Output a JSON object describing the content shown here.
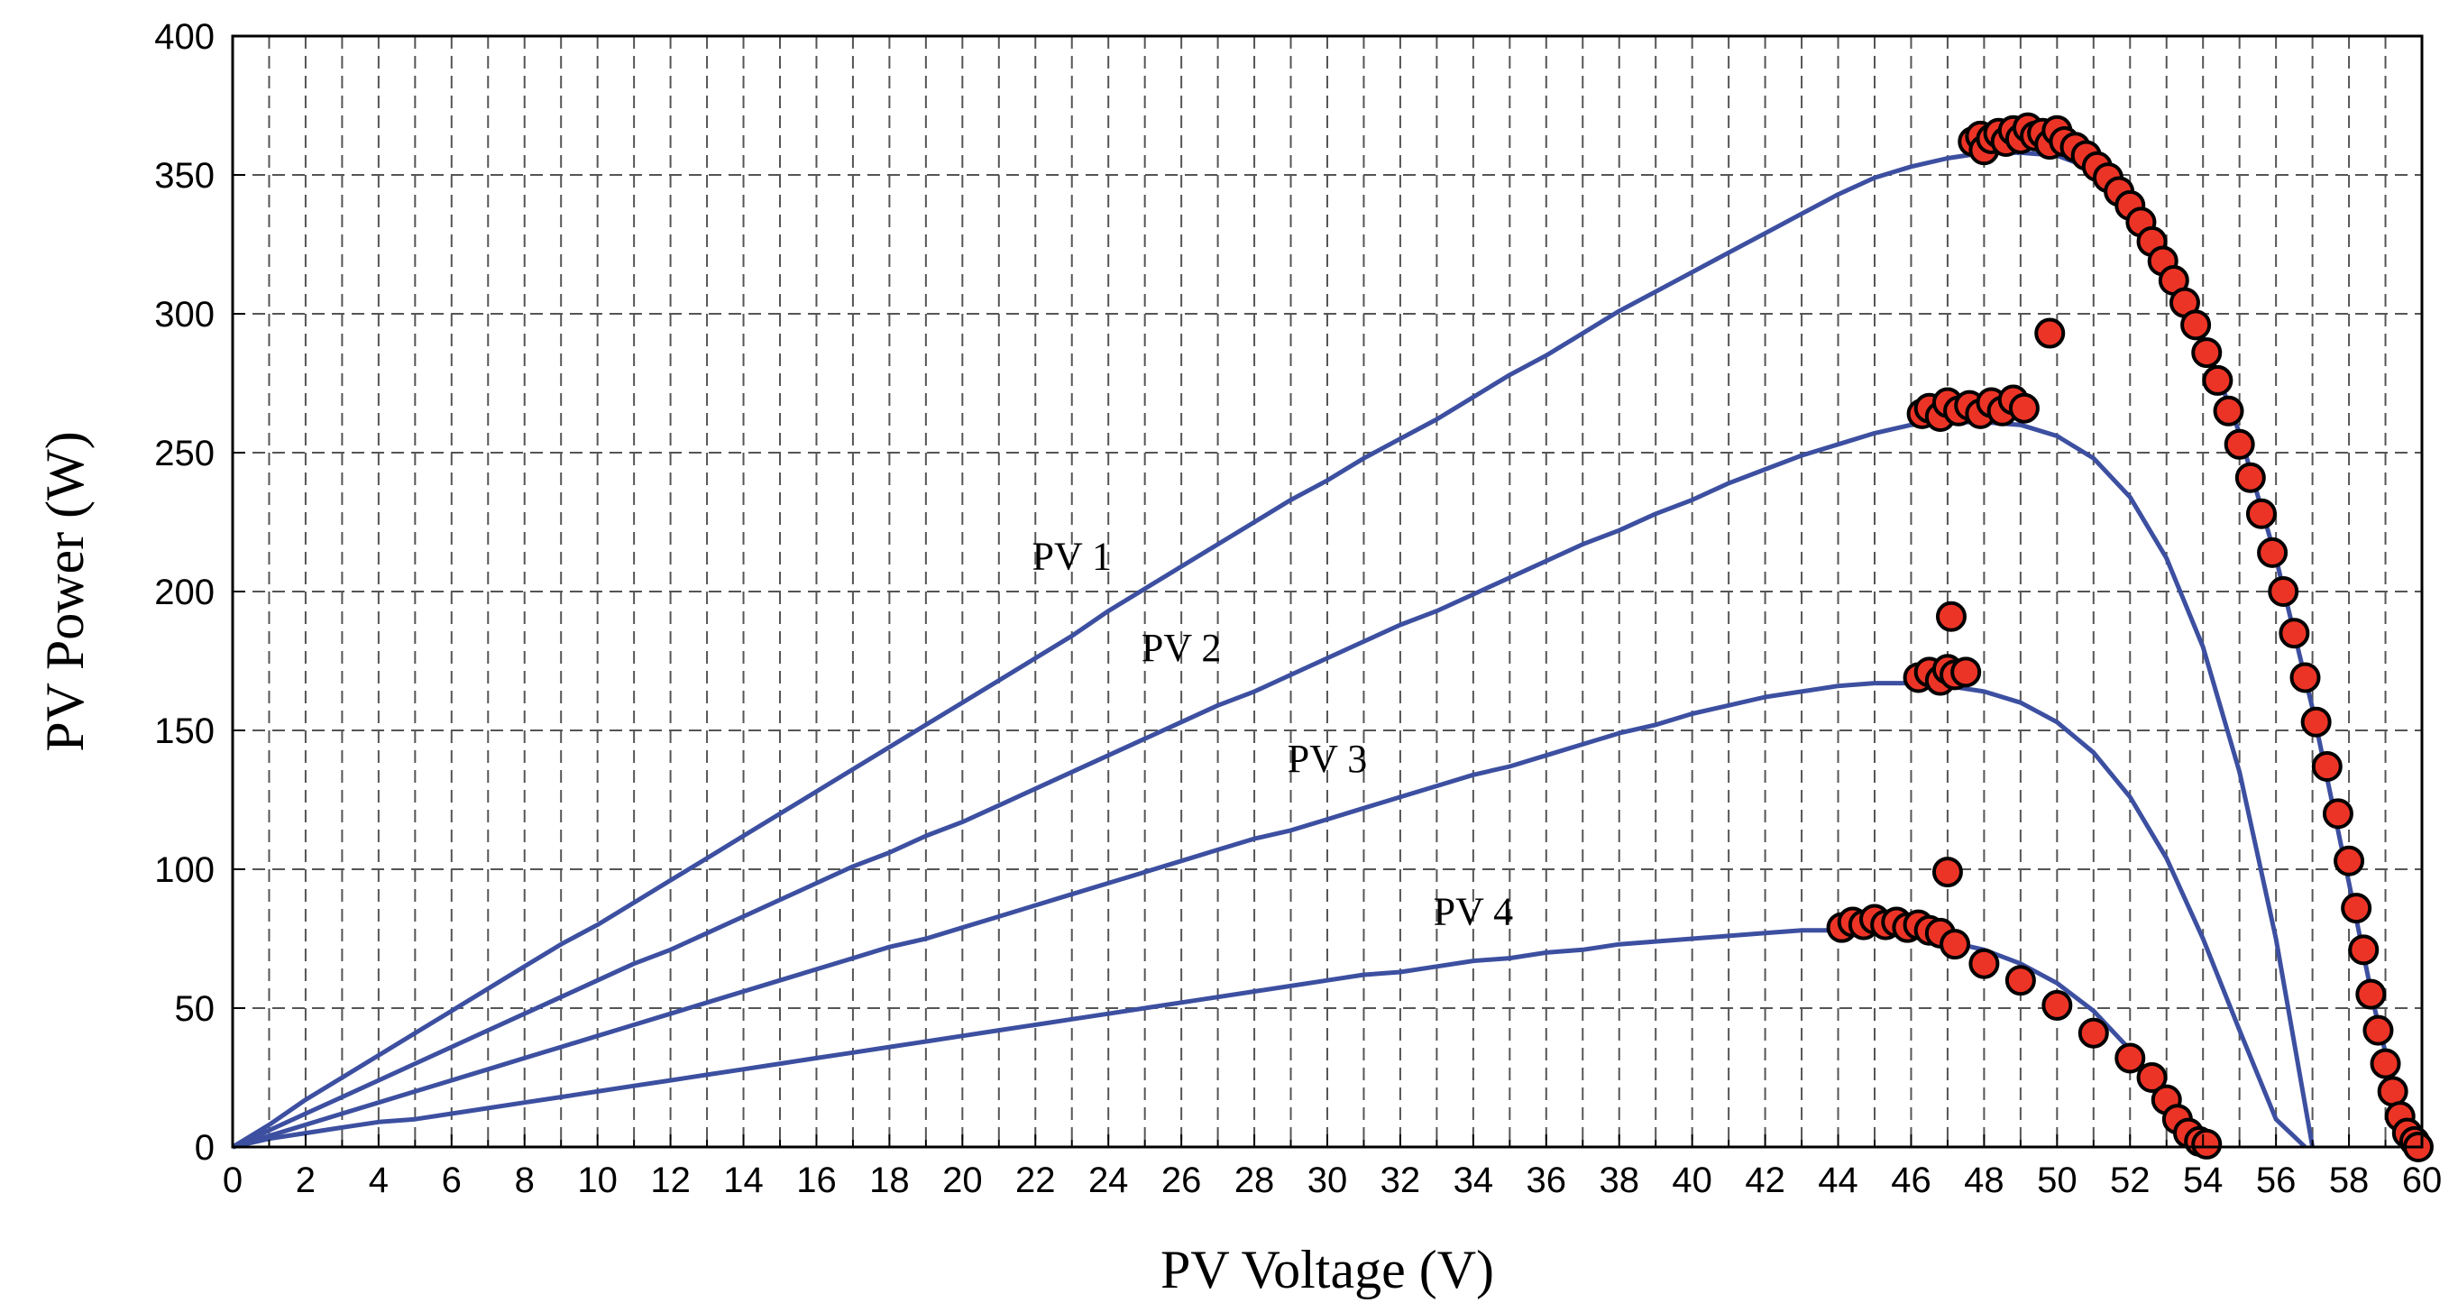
{
  "chart_data": {
    "type": "line",
    "xlabel": "PV Voltage (V)",
    "ylabel": "PV Power (W)",
    "xlim": [
      0,
      60
    ],
    "ylim": [
      0,
      400
    ],
    "x_ticks": [
      "0",
      "2",
      "4",
      "6",
      "8",
      "10",
      "12",
      "14",
      "16",
      "18",
      "20",
      "22",
      "24",
      "26",
      "28",
      "30",
      "32",
      "34",
      "36",
      "38",
      "40",
      "42",
      "44",
      "46",
      "48",
      "50",
      "52",
      "54",
      "56",
      "58",
      "60"
    ],
    "y_ticks": [
      "0",
      "50",
      "100",
      "150",
      "200",
      "250",
      "300",
      "350",
      "400"
    ],
    "x_minor_step": 1,
    "grid": true,
    "colors": {
      "curve": "#3c4fa0",
      "marker_fill": "#ec3426",
      "marker_edge": "#000000"
    },
    "series": [
      {
        "name": "PV 1",
        "label_at": [
          23,
          208
        ],
        "x": [
          0,
          1,
          2,
          3,
          4,
          5,
          6,
          7,
          8,
          9,
          10,
          11,
          12,
          13,
          14,
          15,
          16,
          17,
          18,
          19,
          20,
          21,
          22,
          23,
          24,
          25,
          26,
          27,
          28,
          29,
          30,
          31,
          32,
          33,
          34,
          35,
          36,
          37,
          38,
          39,
          40,
          41,
          42,
          43,
          44,
          45,
          46,
          47,
          48,
          49,
          50,
          51,
          52,
          53,
          54,
          55,
          56,
          57,
          58,
          58.7,
          59.3,
          59.8
        ],
        "y": [
          0,
          8,
          17,
          25,
          33,
          41,
          49,
          57,
          65,
          73,
          80,
          88,
          96,
          104,
          112,
          120,
          128,
          136,
          144,
          152,
          160,
          168,
          176,
          184,
          193,
          201,
          209,
          217,
          225,
          233,
          240,
          248,
          255,
          262,
          270,
          278,
          285,
          293,
          301,
          308,
          315,
          322,
          329,
          336,
          343,
          349,
          353,
          356,
          358,
          358,
          357,
          352,
          340,
          320,
          292,
          257,
          212,
          158,
          95,
          50,
          18,
          0
        ]
      },
      {
        "name": "PV 2",
        "label_at": [
          26,
          175
        ],
        "x": [
          0,
          1,
          2,
          3,
          4,
          5,
          6,
          7,
          8,
          9,
          10,
          11,
          12,
          13,
          14,
          15,
          16,
          17,
          18,
          19,
          20,
          21,
          22,
          23,
          24,
          25,
          26,
          27,
          28,
          29,
          30,
          31,
          32,
          33,
          34,
          35,
          36,
          37,
          38,
          39,
          40,
          41,
          42,
          43,
          44,
          45,
          46,
          47,
          48,
          49,
          50,
          51,
          52,
          53,
          54,
          55,
          56,
          57
        ],
        "y": [
          0,
          6,
          12,
          18,
          24,
          30,
          36,
          42,
          48,
          54,
          60,
          66,
          71,
          77,
          83,
          89,
          95,
          101,
          106,
          112,
          117,
          123,
          129,
          135,
          141,
          147,
          153,
          159,
          164,
          170,
          176,
          182,
          188,
          193,
          199,
          205,
          211,
          217,
          222,
          228,
          233,
          239,
          244,
          249,
          253,
          257,
          260,
          261,
          261,
          260,
          256,
          248,
          234,
          212,
          180,
          135,
          75,
          0
        ]
      },
      {
        "name": "PV 3",
        "label_at": [
          30,
          135
        ],
        "x": [
          0,
          1,
          2,
          3,
          4,
          5,
          6,
          7,
          8,
          9,
          10,
          11,
          12,
          13,
          14,
          15,
          16,
          17,
          18,
          19,
          20,
          21,
          22,
          23,
          24,
          25,
          26,
          27,
          28,
          29,
          30,
          31,
          32,
          33,
          34,
          35,
          36,
          37,
          38,
          39,
          40,
          41,
          42,
          43,
          44,
          45,
          46,
          47,
          48,
          49,
          50,
          51,
          52,
          53,
          54,
          55,
          56,
          56.8
        ],
        "y": [
          0,
          4,
          8,
          12,
          16,
          20,
          24,
          28,
          32,
          36,
          40,
          44,
          48,
          52,
          56,
          60,
          64,
          68,
          72,
          75,
          79,
          83,
          87,
          91,
          95,
          99,
          103,
          107,
          111,
          114,
          118,
          122,
          126,
          130,
          134,
          137,
          141,
          145,
          149,
          152,
          156,
          159,
          162,
          164,
          166,
          167,
          167,
          166,
          164,
          160,
          153,
          142,
          126,
          104,
          75,
          42,
          10,
          0
        ]
      },
      {
        "name": "PV 4",
        "label_at": [
          34,
          80
        ],
        "x": [
          0,
          1,
          2,
          3,
          4,
          5,
          6,
          7,
          8,
          9,
          10,
          11,
          12,
          13,
          14,
          15,
          16,
          17,
          18,
          19,
          20,
          21,
          22,
          23,
          24,
          25,
          26,
          27,
          28,
          29,
          30,
          31,
          32,
          33,
          34,
          35,
          36,
          37,
          38,
          39,
          40,
          41,
          42,
          43,
          44,
          45,
          46,
          47,
          48,
          49,
          50,
          51,
          52,
          53,
          53.7
        ],
        "y": [
          0,
          3,
          5,
          7,
          9,
          10,
          12,
          14,
          16,
          18,
          20,
          22,
          24,
          26,
          28,
          30,
          32,
          34,
          36,
          38,
          40,
          42,
          44,
          46,
          48,
          50,
          52,
          54,
          56,
          58,
          60,
          62,
          63,
          65,
          67,
          68,
          70,
          71,
          73,
          74,
          75,
          76,
          77,
          78,
          78,
          77,
          76,
          74,
          71,
          66,
          59,
          49,
          35,
          16,
          0
        ]
      }
    ],
    "markers": {
      "x": [
        47.7,
        47.9,
        48.0,
        48.2,
        48.4,
        48.6,
        48.8,
        49.0,
        49.2,
        49.4,
        49.6,
        49.8,
        50.0,
        50.2,
        50.5,
        50.8,
        51.1,
        51.4,
        51.7,
        52.0,
        52.3,
        52.6,
        52.9,
        53.2,
        53.5,
        53.8,
        54.1,
        54.4,
        54.7,
        55.0,
        55.3,
        55.6,
        55.9,
        56.2,
        56.5,
        56.8,
        57.1,
        57.4,
        57.7,
        58.0,
        58.2,
        58.4,
        58.6,
        58.8,
        59.0,
        59.2,
        59.4,
        59.6,
        59.8,
        59.9,
        49.8,
        46.3,
        46.5,
        46.8,
        47.0,
        47.3,
        47.6,
        47.9,
        48.2,
        48.5,
        48.8,
        49.1,
        46.2,
        46.5,
        46.8,
        47.0,
        47.2,
        47.5,
        47.1,
        47.0,
        44.1,
        44.4,
        44.7,
        45.0,
        45.3,
        45.6,
        45.9,
        46.2,
        46.5,
        46.8,
        47.2,
        48.0,
        49.0,
        50.0,
        51.0,
        52.0,
        52.6,
        53.0,
        53.3,
        53.6,
        53.9,
        54.1
      ],
      "y": [
        362,
        364,
        359,
        363,
        365,
        362,
        366,
        363,
        367,
        364,
        365,
        361,
        366,
        362,
        360,
        357,
        353,
        349,
        344,
        339,
        333,
        326,
        319,
        312,
        304,
        296,
        286,
        276,
        265,
        253,
        241,
        228,
        214,
        200,
        185,
        169,
        153,
        137,
        120,
        103,
        86,
        71,
        55,
        42,
        30,
        20,
        11,
        5,
        2,
        0,
        293,
        264,
        266,
        263,
        268,
        265,
        267,
        264,
        268,
        265,
        269,
        266,
        169,
        171,
        168,
        172,
        170,
        171,
        191,
        99,
        79,
        81,
        80,
        82,
        80,
        81,
        79,
        80,
        78,
        77,
        73,
        66,
        60,
        51,
        41,
        32,
        25,
        17,
        10,
        5,
        2,
        1
      ]
    }
  }
}
